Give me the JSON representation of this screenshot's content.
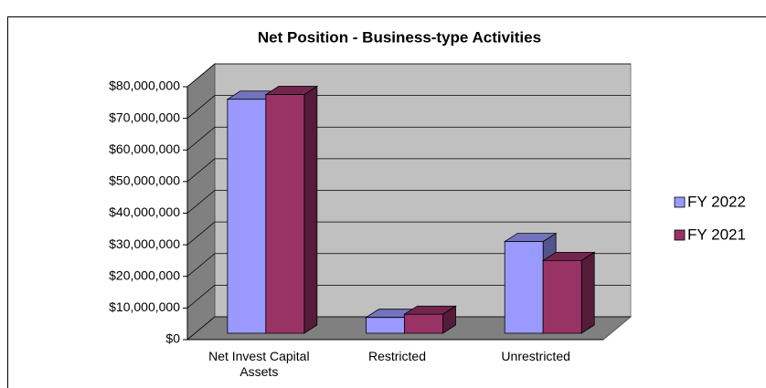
{
  "chart_data": {
    "type": "bar3d",
    "title": "Net Position - Business-type Activities",
    "categories": [
      "Net Invest Capital Assets",
      "Restricted",
      "Unrestricted"
    ],
    "series": [
      {
        "name": "FY 2022",
        "color": "#9999ff",
        "values": [
          74000000,
          5000000,
          29000000
        ]
      },
      {
        "name": "FY 2021",
        "color": "#993366",
        "values": [
          75500000,
          6000000,
          23000000
        ]
      }
    ],
    "ylim": [
      0,
      80000000
    ],
    "yticks": [
      {
        "value": 0,
        "label": "$0"
      },
      {
        "value": 10000000,
        "label": "$10,000,000"
      },
      {
        "value": 20000000,
        "label": "$20,000,000"
      },
      {
        "value": 30000000,
        "label": "$30,000,000"
      },
      {
        "value": 40000000,
        "label": "$40,000,000"
      },
      {
        "value": 50000000,
        "label": "$50,000,000"
      },
      {
        "value": 60000000,
        "label": "$60,000,000"
      },
      {
        "value": 70000000,
        "label": "$70,000,000"
      },
      {
        "value": 80000000,
        "label": "$80,000,000"
      }
    ],
    "grid": true,
    "legend": "right"
  }
}
